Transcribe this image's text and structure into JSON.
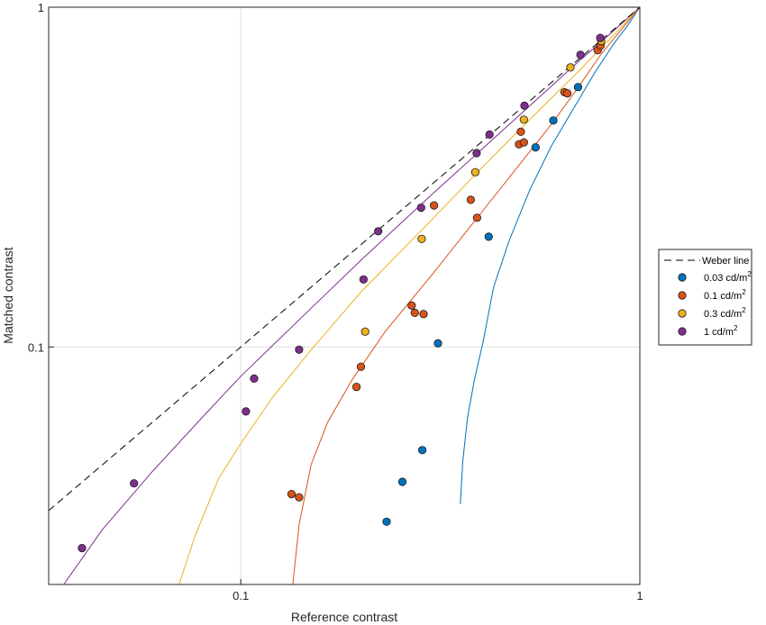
{
  "chart_data": {
    "type": "scatter",
    "x_scale": "log",
    "y_scale": "log",
    "xlim": [
      0.033,
      1
    ],
    "ylim": [
      0.02,
      1
    ],
    "xlabel": "Reference contrast",
    "ylabel": "Matched contrast",
    "x_ticks": [
      {
        "value": 0.1,
        "label": "0.1"
      },
      {
        "value": 1,
        "label": "1"
      }
    ],
    "y_ticks": [
      {
        "value": 0.1,
        "label": "0.1"
      },
      {
        "value": 1,
        "label": "1"
      }
    ],
    "grid": true,
    "legend_position": "outside-right",
    "reference_line": {
      "name": "Weber line",
      "color": "#000000",
      "dash": true,
      "points": [
        [
          0.033,
          0.033
        ],
        [
          1,
          1
        ]
      ]
    },
    "series": [
      {
        "name": "0.03 cd/m",
        "superscript": "2",
        "color": "#0072BD",
        "points": [
          [
            0.232,
            0.0306
          ],
          [
            0.254,
            0.0401
          ],
          [
            0.285,
            0.0497
          ],
          [
            0.312,
            0.1025
          ],
          [
            0.418,
            0.211
          ],
          [
            0.548,
            0.387
          ],
          [
            0.607,
            0.464
          ],
          [
            0.7,
            0.582
          ]
        ],
        "curve": [
          [
            0.355,
            0.0345
          ],
          [
            0.36,
            0.046
          ],
          [
            0.37,
            0.062
          ],
          [
            0.385,
            0.08
          ],
          [
            0.405,
            0.104
          ],
          [
            0.43,
            0.15
          ],
          [
            0.47,
            0.205
          ],
          [
            0.53,
            0.29
          ],
          [
            0.6,
            0.39
          ],
          [
            0.68,
            0.5
          ],
          [
            0.77,
            0.64
          ],
          [
            0.86,
            0.78
          ],
          [
            0.93,
            0.88
          ],
          [
            1.0,
            1.0
          ]
        ]
      },
      {
        "name": "0.1 cd/m",
        "superscript": "2",
        "color": "#D95319",
        "points": [
          [
            0.134,
            0.0369
          ],
          [
            0.14,
            0.0361
          ],
          [
            0.195,
            0.0763
          ],
          [
            0.2,
            0.0875
          ],
          [
            0.268,
            0.1325
          ],
          [
            0.273,
            0.126
          ],
          [
            0.287,
            0.125
          ],
          [
            0.305,
            0.261
          ],
          [
            0.377,
            0.271
          ],
          [
            0.391,
            0.24
          ],
          [
            0.498,
            0.395
          ],
          [
            0.503,
            0.43
          ],
          [
            0.512,
            0.4
          ],
          [
            0.647,
            0.562
          ],
          [
            0.658,
            0.558
          ],
          [
            0.784,
            0.747
          ],
          [
            0.797,
            0.77
          ]
        ],
        "curve": [
          [
            0.135,
            0.02
          ],
          [
            0.14,
            0.03
          ],
          [
            0.15,
            0.045
          ],
          [
            0.165,
            0.06
          ],
          [
            0.19,
            0.08
          ],
          [
            0.23,
            0.111
          ],
          [
            0.3,
            0.162
          ],
          [
            0.4,
            0.248
          ],
          [
            0.5,
            0.345
          ],
          [
            0.6,
            0.452
          ],
          [
            0.7,
            0.58
          ],
          [
            0.8,
            0.728
          ],
          [
            0.9,
            0.86
          ],
          [
            1.0,
            1.0
          ]
        ]
      },
      {
        "name": "0.3 cd/m",
        "superscript": "2",
        "color": "#EDB120",
        "points": [
          [
            0.205,
            0.111
          ],
          [
            0.284,
            0.208
          ],
          [
            0.387,
            0.327
          ],
          [
            0.512,
            0.467
          ],
          [
            0.67,
            0.665
          ],
          [
            0.8,
            0.795
          ]
        ],
        "curve": [
          [
            0.07,
            0.02
          ],
          [
            0.077,
            0.028
          ],
          [
            0.088,
            0.041
          ],
          [
            0.1,
            0.052
          ],
          [
            0.12,
            0.071
          ],
          [
            0.15,
            0.098
          ],
          [
            0.2,
            0.145
          ],
          [
            0.3,
            0.236
          ],
          [
            0.4,
            0.335
          ],
          [
            0.5,
            0.436
          ],
          [
            0.6,
            0.54
          ],
          [
            0.7,
            0.645
          ],
          [
            0.8,
            0.758
          ],
          [
            0.9,
            0.875
          ],
          [
            1.0,
            1.0
          ]
        ]
      },
      {
        "name": "1 cd/m",
        "superscript": "2",
        "color": "#7E2F8E",
        "points": [
          [
            0.04,
            0.0256
          ],
          [
            0.054,
            0.0397
          ],
          [
            0.103,
            0.0646
          ],
          [
            0.108,
            0.0807
          ],
          [
            0.14,
            0.0982
          ],
          [
            0.203,
            0.158
          ],
          [
            0.221,
            0.219
          ],
          [
            0.283,
            0.257
          ],
          [
            0.39,
            0.372
          ],
          [
            0.42,
            0.422
          ],
          [
            0.514,
            0.513
          ],
          [
            0.71,
            0.724
          ],
          [
            0.796,
            0.812
          ]
        ],
        "curve": [
          [
            0.036,
            0.02
          ],
          [
            0.045,
            0.029
          ],
          [
            0.06,
            0.043
          ],
          [
            0.08,
            0.062
          ],
          [
            0.1,
            0.082
          ],
          [
            0.15,
            0.13
          ],
          [
            0.2,
            0.18
          ],
          [
            0.3,
            0.28
          ],
          [
            0.4,
            0.38
          ],
          [
            0.5,
            0.482
          ],
          [
            0.6,
            0.585
          ],
          [
            0.7,
            0.69
          ],
          [
            0.8,
            0.79
          ],
          [
            0.9,
            0.895
          ],
          [
            1.0,
            1.0
          ]
        ]
      }
    ]
  }
}
